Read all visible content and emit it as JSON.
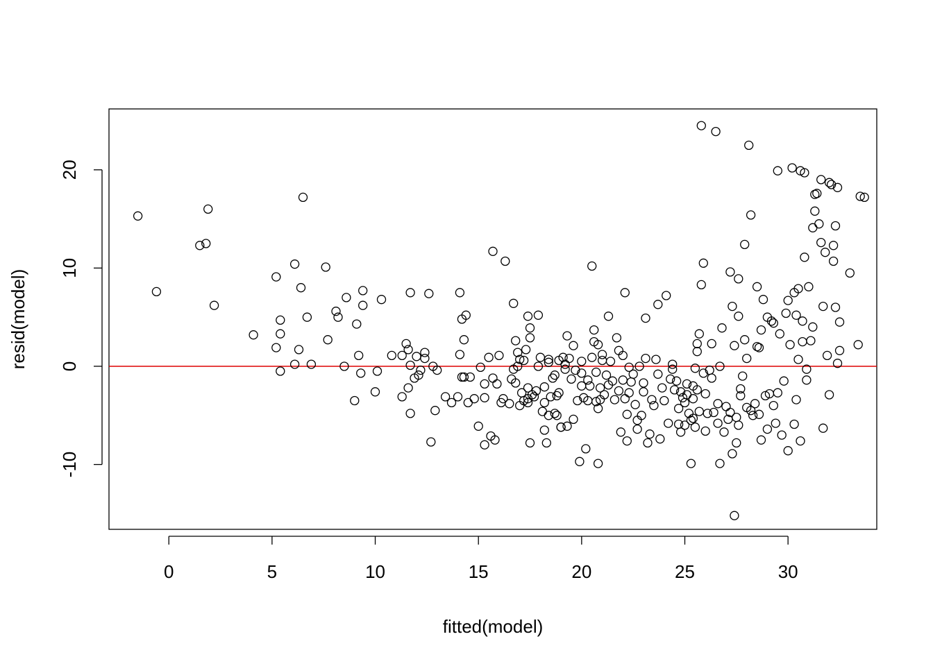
{
  "chart_data": {
    "type": "scatter",
    "title": "",
    "xlabel": "fitted(model)",
    "ylabel": "resid(model)",
    "xlim": [
      -2.9,
      34.3
    ],
    "ylim": [
      -16.6,
      26.2
    ],
    "x_ticks": [
      0,
      5,
      10,
      15,
      20,
      25,
      30
    ],
    "y_ticks": [
      -10,
      0,
      10,
      20
    ],
    "x_tick_labels": [
      "0",
      "5",
      "10",
      "15",
      "20",
      "25",
      "30"
    ],
    "y_tick_labels": [
      "-10",
      "0",
      "10",
      "20"
    ],
    "grid": false,
    "reference_line": {
      "y": 0,
      "color": "#dd0000"
    },
    "point_style": "open-circle",
    "points": [
      [
        -1.5,
        15.3
      ],
      [
        -0.6,
        7.6
      ],
      [
        1.5,
        12.3
      ],
      [
        1.8,
        12.5
      ],
      [
        1.9,
        16.0
      ],
      [
        2.2,
        6.2
      ],
      [
        4.1,
        3.2
      ],
      [
        5.2,
        9.1
      ],
      [
        5.2,
        1.9
      ],
      [
        5.4,
        4.7
      ],
      [
        5.4,
        3.3
      ],
      [
        5.4,
        -0.5
      ],
      [
        6.1,
        10.4
      ],
      [
        6.1,
        0.2
      ],
      [
        6.3,
        1.7
      ],
      [
        6.4,
        8.0
      ],
      [
        6.5,
        17.2
      ],
      [
        6.7,
        5.0
      ],
      [
        6.9,
        0.2
      ],
      [
        7.6,
        10.1
      ],
      [
        7.7,
        2.7
      ],
      [
        8.1,
        5.6
      ],
      [
        8.2,
        5.0
      ],
      [
        8.5,
        0.0
      ],
      [
        8.6,
        7.0
      ],
      [
        9.0,
        -3.5
      ],
      [
        9.1,
        4.3
      ],
      [
        9.2,
        1.1
      ],
      [
        9.3,
        -0.7
      ],
      [
        9.4,
        7.7
      ],
      [
        9.4,
        6.2
      ],
      [
        10.0,
        -2.6
      ],
      [
        10.1,
        -0.5
      ],
      [
        10.3,
        6.8
      ],
      [
        10.8,
        1.1
      ],
      [
        11.3,
        1.1
      ],
      [
        11.3,
        -3.1
      ],
      [
        11.5,
        2.3
      ],
      [
        11.6,
        -2.2
      ],
      [
        11.6,
        1.7
      ],
      [
        11.7,
        7.5
      ],
      [
        11.7,
        0.1
      ],
      [
        11.7,
        -4.8
      ],
      [
        11.9,
        -1.2
      ],
      [
        12.0,
        1.0
      ],
      [
        12.1,
        -0.9
      ],
      [
        12.2,
        -0.4
      ],
      [
        12.4,
        1.4
      ],
      [
        12.4,
        0.8
      ],
      [
        12.6,
        7.4
      ],
      [
        12.7,
        -7.7
      ],
      [
        12.8,
        0.0
      ],
      [
        12.9,
        -4.5
      ],
      [
        13.0,
        -0.4
      ],
      [
        13.4,
        -3.1
      ],
      [
        13.7,
        -3.7
      ],
      [
        14.0,
        -3.1
      ],
      [
        14.1,
        7.5
      ],
      [
        14.1,
        1.2
      ],
      [
        14.2,
        4.8
      ],
      [
        14.2,
        -1.1
      ],
      [
        14.3,
        -1.1
      ],
      [
        14.3,
        2.7
      ],
      [
        14.4,
        5.2
      ],
      [
        14.5,
        -3.7
      ],
      [
        14.6,
        -1.1
      ],
      [
        14.8,
        -3.3
      ],
      [
        15.0,
        -6.1
      ],
      [
        15.1,
        -0.1
      ],
      [
        15.3,
        -8.0
      ],
      [
        15.3,
        -1.8
      ],
      [
        15.3,
        -3.2
      ],
      [
        15.5,
        0.9
      ],
      [
        15.6,
        -7.1
      ],
      [
        15.7,
        11.7
      ],
      [
        15.7,
        -1.2
      ],
      [
        15.8,
        -7.5
      ],
      [
        15.9,
        -1.8
      ],
      [
        16.0,
        1.1
      ],
      [
        16.1,
        -3.7
      ],
      [
        16.2,
        -3.3
      ],
      [
        16.3,
        10.7
      ],
      [
        16.5,
        -3.8
      ],
      [
        16.6,
        -1.3
      ],
      [
        16.7,
        6.4
      ],
      [
        16.7,
        -0.3
      ],
      [
        16.8,
        -1.7
      ],
      [
        16.8,
        2.6
      ],
      [
        16.9,
        0.0
      ],
      [
        16.9,
        1.4
      ],
      [
        17.0,
        0.7
      ],
      [
        17.0,
        -4.0
      ],
      [
        17.1,
        -2.7
      ],
      [
        17.2,
        0.6
      ],
      [
        17.2,
        -3.5
      ],
      [
        17.3,
        1.7
      ],
      [
        17.4,
        -3.3
      ],
      [
        17.4,
        -2.2
      ],
      [
        17.4,
        -3.7
      ],
      [
        17.4,
        5.1
      ],
      [
        17.5,
        -7.8
      ],
      [
        17.5,
        3.9
      ],
      [
        17.5,
        2.9
      ],
      [
        17.6,
        -2.9
      ],
      [
        17.7,
        -3.1
      ],
      [
        17.8,
        -2.5
      ],
      [
        17.9,
        5.2
      ],
      [
        17.9,
        0.0
      ],
      [
        18.0,
        0.9
      ],
      [
        18.1,
        -4.6
      ],
      [
        18.2,
        -2.1
      ],
      [
        18.2,
        -3.7
      ],
      [
        18.2,
        -6.5
      ],
      [
        18.3,
        -7.8
      ],
      [
        18.4,
        -5.0
      ],
      [
        18.4,
        0.7
      ],
      [
        18.4,
        0.4
      ],
      [
        18.5,
        -3.1
      ],
      [
        18.6,
        -1.2
      ],
      [
        18.7,
        -4.8
      ],
      [
        18.7,
        -0.9
      ],
      [
        18.8,
        -3.0
      ],
      [
        18.8,
        -5.0
      ],
      [
        18.9,
        0.6
      ],
      [
        18.9,
        -2.7
      ],
      [
        19.0,
        -6.2
      ],
      [
        19.0,
        -6.2
      ],
      [
        19.1,
        0.9
      ],
      [
        19.2,
        0.2
      ],
      [
        19.2,
        -0.3
      ],
      [
        19.3,
        3.1
      ],
      [
        19.3,
        -6.1
      ],
      [
        19.4,
        0.8
      ],
      [
        19.5,
        -1.3
      ],
      [
        19.6,
        2.1
      ],
      [
        19.6,
        -5.4
      ],
      [
        19.7,
        -0.4
      ],
      [
        19.8,
        -3.5
      ],
      [
        19.9,
        -9.7
      ],
      [
        20.0,
        -0.7
      ],
      [
        20.0,
        0.5
      ],
      [
        20.0,
        -2.0
      ],
      [
        20.1,
        -3.2
      ],
      [
        20.2,
        -8.4
      ],
      [
        20.3,
        -1.4
      ],
      [
        20.3,
        -3.5
      ],
      [
        20.4,
        -2.0
      ],
      [
        20.5,
        10.2
      ],
      [
        20.5,
        0.9
      ],
      [
        20.6,
        2.5
      ],
      [
        20.6,
        3.7
      ],
      [
        20.7,
        -3.6
      ],
      [
        20.7,
        -0.6
      ],
      [
        20.8,
        -9.9
      ],
      [
        20.8,
        -4.3
      ],
      [
        20.8,
        2.2
      ],
      [
        20.9,
        -2.2
      ],
      [
        20.9,
        -3.4
      ],
      [
        21.0,
        0.6
      ],
      [
        21.0,
        1.2
      ],
      [
        21.1,
        -2.9
      ],
      [
        21.2,
        -0.9
      ],
      [
        21.3,
        -1.9
      ],
      [
        21.3,
        5.1
      ],
      [
        21.4,
        0.5
      ],
      [
        21.5,
        -1.5
      ],
      [
        21.6,
        -3.4
      ],
      [
        21.7,
        2.9
      ],
      [
        21.8,
        -2.5
      ],
      [
        21.8,
        1.6
      ],
      [
        21.9,
        -6.7
      ],
      [
        22.0,
        1.1
      ],
      [
        22.0,
        -1.4
      ],
      [
        22.1,
        7.5
      ],
      [
        22.1,
        -3.3
      ],
      [
        22.2,
        -7.6
      ],
      [
        22.2,
        -4.9
      ],
      [
        22.3,
        -2.7
      ],
      [
        22.3,
        -0.1
      ],
      [
        22.4,
        -1.6
      ],
      [
        22.5,
        -0.8
      ],
      [
        22.6,
        -3.9
      ],
      [
        22.7,
        -5.5
      ],
      [
        22.7,
        -6.4
      ],
      [
        22.8,
        0.0
      ],
      [
        22.9,
        -5.0
      ],
      [
        23.0,
        -2.6
      ],
      [
        23.0,
        -1.7
      ],
      [
        23.1,
        4.9
      ],
      [
        23.1,
        0.8
      ],
      [
        23.2,
        -7.8
      ],
      [
        23.3,
        -6.9
      ],
      [
        23.4,
        -3.4
      ],
      [
        23.5,
        -4.0
      ],
      [
        23.6,
        0.7
      ],
      [
        23.7,
        6.3
      ],
      [
        23.7,
        -0.8
      ],
      [
        23.8,
        -7.4
      ],
      [
        23.9,
        -2.2
      ],
      [
        24.0,
        -3.5
      ],
      [
        24.1,
        7.2
      ],
      [
        24.2,
        -5.8
      ],
      [
        24.3,
        -1.3
      ],
      [
        24.4,
        0.2
      ],
      [
        24.4,
        -0.3
      ],
      [
        24.5,
        -2.4
      ],
      [
        24.6,
        -1.5
      ],
      [
        24.7,
        -4.3
      ],
      [
        24.7,
        -5.9
      ],
      [
        24.8,
        -2.6
      ],
      [
        24.8,
        -6.7
      ],
      [
        24.9,
        -3.2
      ],
      [
        25.0,
        -6.0
      ],
      [
        25.0,
        -3.7
      ],
      [
        25.1,
        -1.8
      ],
      [
        25.1,
        -2.9
      ],
      [
        25.2,
        -4.8
      ],
      [
        25.3,
        -9.9
      ],
      [
        25.3,
        -5.5
      ],
      [
        25.4,
        -3.3
      ],
      [
        25.4,
        -5.3
      ],
      [
        25.4,
        -2.0
      ],
      [
        25.5,
        -0.2
      ],
      [
        25.5,
        -6.2
      ],
      [
        25.6,
        1.5
      ],
      [
        25.6,
        -2.4
      ],
      [
        25.6,
        2.3
      ],
      [
        25.7,
        3.3
      ],
      [
        25.7,
        -4.6
      ],
      [
        25.8,
        8.3
      ],
      [
        25.8,
        24.5
      ],
      [
        25.9,
        10.5
      ],
      [
        25.9,
        -0.7
      ],
      [
        26.0,
        -6.6
      ],
      [
        26.0,
        -2.8
      ],
      [
        26.1,
        -4.8
      ],
      [
        26.2,
        -0.4
      ],
      [
        26.3,
        -1.2
      ],
      [
        26.3,
        2.3
      ],
      [
        26.4,
        -4.7
      ],
      [
        26.5,
        23.9
      ],
      [
        26.6,
        -3.8
      ],
      [
        26.6,
        -5.8
      ],
      [
        26.7,
        -9.9
      ],
      [
        26.7,
        0.0
      ],
      [
        26.8,
        3.9
      ],
      [
        26.9,
        -6.7
      ],
      [
        27.0,
        -4.1
      ],
      [
        27.1,
        -5.4
      ],
      [
        27.2,
        -4.7
      ],
      [
        27.2,
        9.6
      ],
      [
        27.3,
        6.1
      ],
      [
        27.3,
        -8.9
      ],
      [
        27.4,
        2.1
      ],
      [
        27.4,
        -15.2
      ],
      [
        27.5,
        -5.2
      ],
      [
        27.5,
        -7.8
      ],
      [
        27.6,
        5.1
      ],
      [
        27.6,
        8.9
      ],
      [
        27.6,
        -6.0
      ],
      [
        27.7,
        -2.3
      ],
      [
        27.7,
        -3.0
      ],
      [
        27.8,
        -1.0
      ],
      [
        27.9,
        2.7
      ],
      [
        27.9,
        12.4
      ],
      [
        28.0,
        0.8
      ],
      [
        28.0,
        -4.2
      ],
      [
        28.1,
        22.5
      ],
      [
        28.2,
        15.4
      ],
      [
        28.2,
        -4.5
      ],
      [
        28.3,
        -5.0
      ],
      [
        28.4,
        -3.8
      ],
      [
        28.5,
        8.1
      ],
      [
        28.5,
        2.0
      ],
      [
        28.6,
        1.9
      ],
      [
        28.6,
        -4.9
      ],
      [
        28.7,
        -7.5
      ],
      [
        28.7,
        3.7
      ],
      [
        28.8,
        6.8
      ],
      [
        28.9,
        -3.0
      ],
      [
        29.0,
        5.0
      ],
      [
        29.0,
        -6.4
      ],
      [
        29.1,
        -2.8
      ],
      [
        29.2,
        4.6
      ],
      [
        29.3,
        -4.0
      ],
      [
        29.3,
        4.4
      ],
      [
        29.4,
        -5.8
      ],
      [
        29.5,
        19.9
      ],
      [
        29.5,
        -2.7
      ],
      [
        29.6,
        3.3
      ],
      [
        29.7,
        -7.0
      ],
      [
        29.8,
        -1.5
      ],
      [
        29.9,
        5.4
      ],
      [
        30.0,
        6.7
      ],
      [
        30.0,
        -8.6
      ],
      [
        30.1,
        2.2
      ],
      [
        30.2,
        20.2
      ],
      [
        30.3,
        7.5
      ],
      [
        30.3,
        -5.9
      ],
      [
        30.4,
        5.2
      ],
      [
        30.4,
        -3.4
      ],
      [
        30.5,
        7.9
      ],
      [
        30.5,
        0.7
      ],
      [
        30.6,
        19.9
      ],
      [
        30.6,
        -7.6
      ],
      [
        30.7,
        4.6
      ],
      [
        30.7,
        2.5
      ],
      [
        30.8,
        19.7
      ],
      [
        30.8,
        11.1
      ],
      [
        30.9,
        -1.4
      ],
      [
        30.9,
        -0.3
      ],
      [
        31.0,
        8.1
      ],
      [
        31.1,
        2.6
      ],
      [
        31.2,
        14.1
      ],
      [
        31.2,
        4.0
      ],
      [
        31.3,
        17.5
      ],
      [
        31.3,
        15.8
      ],
      [
        31.4,
        17.6
      ],
      [
        31.5,
        14.5
      ],
      [
        31.6,
        19.0
      ],
      [
        31.6,
        12.6
      ],
      [
        31.7,
        6.1
      ],
      [
        31.7,
        -6.3
      ],
      [
        31.8,
        11.6
      ],
      [
        31.9,
        1.1
      ],
      [
        32.0,
        18.7
      ],
      [
        32.0,
        -2.9
      ],
      [
        32.1,
        18.5
      ],
      [
        32.2,
        12.3
      ],
      [
        32.2,
        10.7
      ],
      [
        32.3,
        6.0
      ],
      [
        32.3,
        14.3
      ],
      [
        32.4,
        0.3
      ],
      [
        32.4,
        18.2
      ],
      [
        32.5,
        4.5
      ],
      [
        32.5,
        1.6
      ],
      [
        33.0,
        9.5
      ],
      [
        33.4,
        2.2
      ],
      [
        33.5,
        17.3
      ],
      [
        33.7,
        17.2
      ]
    ]
  }
}
